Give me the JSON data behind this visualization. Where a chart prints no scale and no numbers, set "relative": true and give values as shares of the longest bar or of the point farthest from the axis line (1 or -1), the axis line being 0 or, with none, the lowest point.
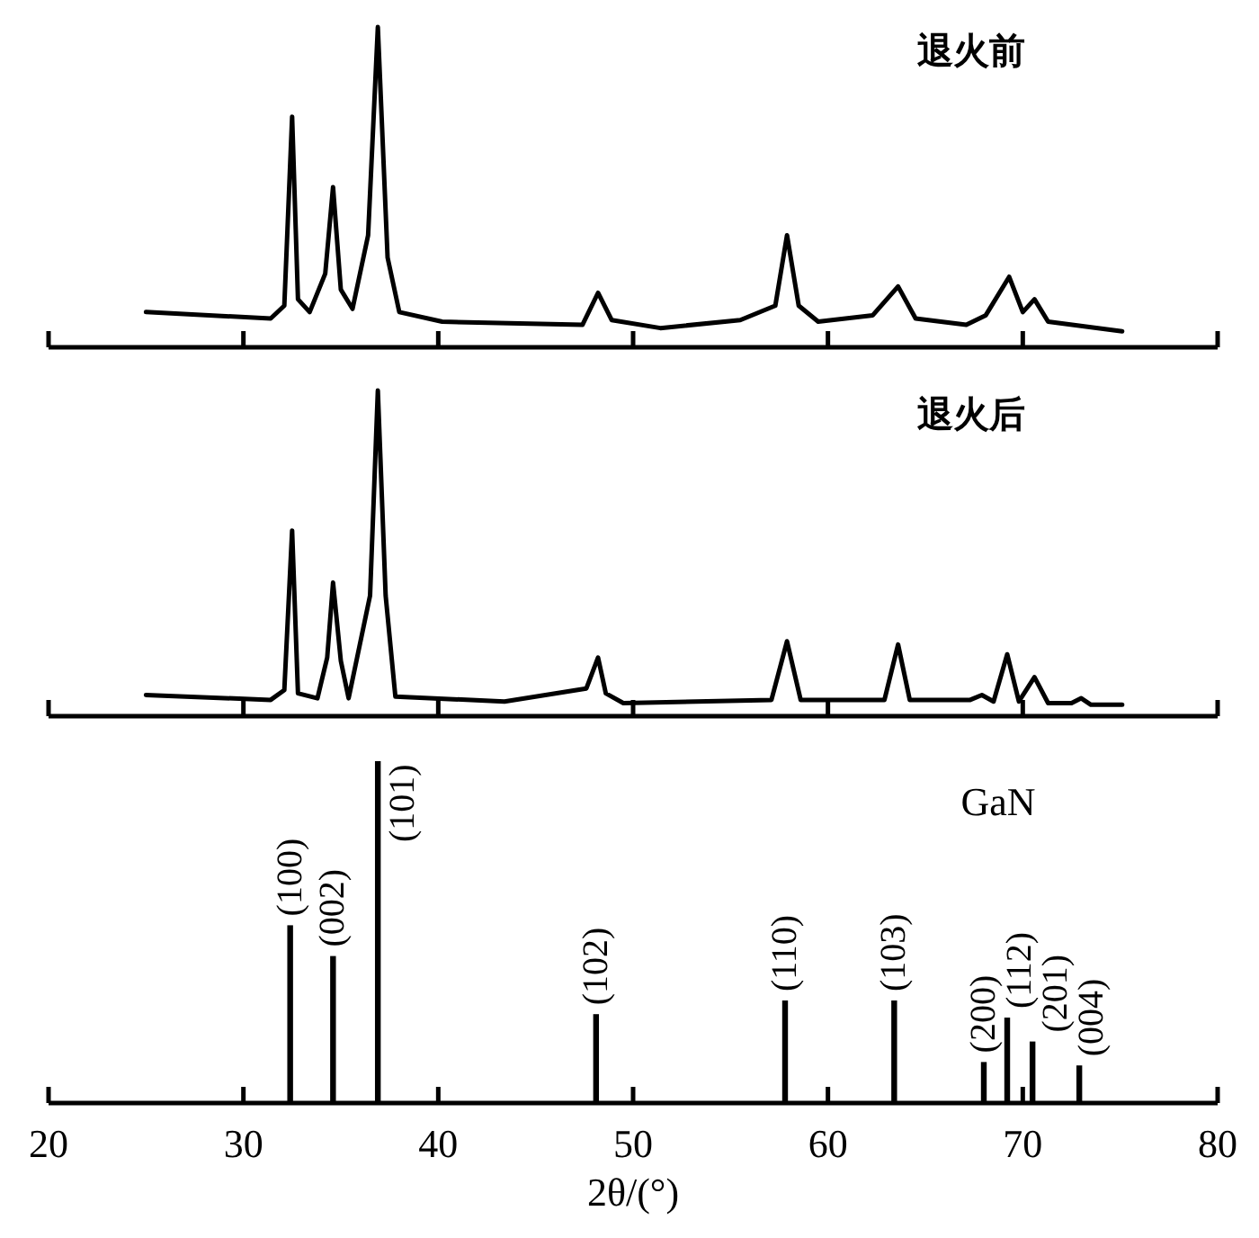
{
  "chart_data": [
    {
      "type": "line",
      "relative": true,
      "xlim": [
        20,
        80
      ],
      "xticks": [
        20,
        30,
        40,
        50,
        60,
        70,
        80
      ],
      "tick_labels": false,
      "line_style": "solid",
      "annotations": [
        "退火前"
      ],
      "series": [
        {
          "color": "#000000",
          "x": [
            25.0,
            31.4,
            32.1,
            32.5,
            32.8,
            33.4,
            34.2,
            34.6,
            35.0,
            35.6,
            36.4,
            36.9,
            37.4,
            38.0,
            40.2,
            47.4,
            48.2,
            48.9,
            51.4,
            55.5,
            57.3,
            57.9,
            58.5,
            59.5,
            62.3,
            63.6,
            64.5,
            67.1,
            68.1,
            69.3,
            70.0,
            70.6,
            71.3,
            75.1
          ],
          "values": [
            0.11,
            0.09,
            0.13,
            0.72,
            0.15,
            0.11,
            0.23,
            0.5,
            0.18,
            0.12,
            0.35,
            1.0,
            0.28,
            0.11,
            0.08,
            0.07,
            0.17,
            0.085,
            0.06,
            0.085,
            0.13,
            0.35,
            0.13,
            0.08,
            0.1,
            0.19,
            0.09,
            0.07,
            0.1,
            0.22,
            0.11,
            0.15,
            0.08,
            0.05
          ]
        }
      ]
    },
    {
      "type": "line",
      "relative": true,
      "xlim": [
        20,
        80
      ],
      "xticks": [
        20,
        30,
        40,
        50,
        60,
        70,
        80
      ],
      "tick_labels": false,
      "line_style": "solid",
      "annotations": [
        "退火后"
      ],
      "series": [
        {
          "color": "#000000",
          "x": [
            25.0,
            31.4,
            32.1,
            32.5,
            32.8,
            33.8,
            34.3,
            34.6,
            35.0,
            35.4,
            36.5,
            36.9,
            37.3,
            37.8,
            43.4,
            47.6,
            48.2,
            48.6,
            49.5,
            57.1,
            57.9,
            58.6,
            62.9,
            63.6,
            64.2,
            67.3,
            67.9,
            68.5,
            69.2,
            69.8,
            70.6,
            71.3,
            72.5,
            73.0,
            73.5,
            75.1
          ],
          "values": [
            0.065,
            0.05,
            0.08,
            0.57,
            0.07,
            0.055,
            0.18,
            0.41,
            0.17,
            0.055,
            0.37,
            1.0,
            0.37,
            0.06,
            0.045,
            0.085,
            0.18,
            0.07,
            0.04,
            0.05,
            0.23,
            0.05,
            0.05,
            0.22,
            0.05,
            0.05,
            0.065,
            0.045,
            0.19,
            0.045,
            0.12,
            0.04,
            0.04,
            0.055,
            0.035,
            0.035
          ]
        }
      ]
    },
    {
      "type": "bar",
      "relative": true,
      "xlim": [
        20,
        80
      ],
      "xticks": [
        20,
        30,
        40,
        50,
        60,
        70,
        80
      ],
      "tick_labels": "x",
      "xlabel": "2θ/(°)",
      "annotations": [
        "GaN",
        {
          "text": "(100)",
          "x": 32.4,
          "y": 0.52
        },
        {
          "text": "(002)",
          "x": 34.6,
          "y": 0.43
        },
        {
          "text": "(101)",
          "x": 36.9,
          "y": 1.0
        },
        {
          "text": "(102)",
          "x": 48.1,
          "y": 0.26
        },
        {
          "text": "(110)",
          "x": 57.8,
          "y": 0.3
        },
        {
          "text": "(103)",
          "x": 63.4,
          "y": 0.3
        },
        {
          "text": "(200)",
          "x": 68.0,
          "y": 0.12
        },
        {
          "text": "(112)",
          "x": 69.2,
          "y": 0.25
        },
        {
          "text": "(201)",
          "x": 70.5,
          "y": 0.18
        },
        {
          "text": "(004)",
          "x": 72.9,
          "y": 0.11
        }
      ],
      "color": "#000000",
      "x": [
        32.4,
        34.6,
        36.9,
        48.1,
        57.8,
        63.4,
        68.0,
        69.2,
        70.5,
        72.9
      ],
      "values": [
        0.52,
        0.43,
        1.0,
        0.26,
        0.3,
        0.3,
        0.12,
        0.25,
        0.18,
        0.11
      ]
    }
  ]
}
